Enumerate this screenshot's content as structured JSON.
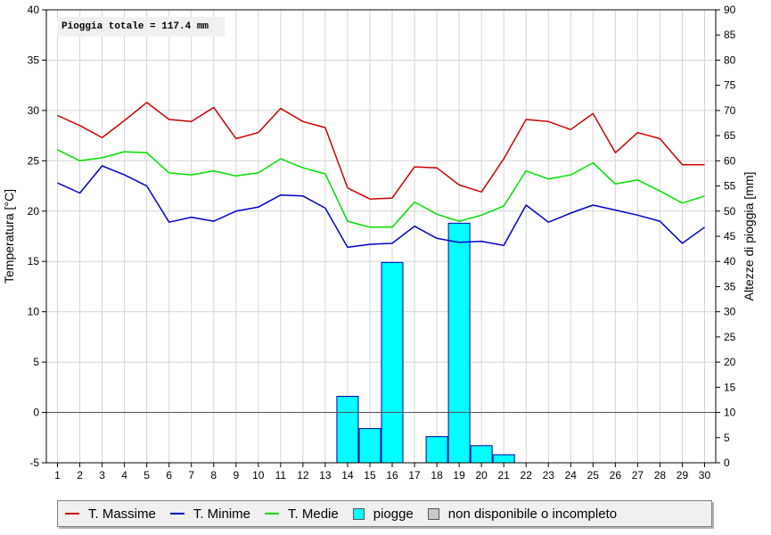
{
  "chart_data": {
    "type": "line",
    "annotation": "Pioggia totale = 117.4 mm",
    "xlabel": "",
    "ylabel_left": "Temperatura [°C]",
    "ylabel_right": "Altezze di pioggia [mm]",
    "x": [
      1,
      2,
      3,
      4,
      5,
      6,
      7,
      8,
      9,
      10,
      11,
      12,
      13,
      14,
      15,
      16,
      17,
      18,
      19,
      20,
      21,
      22,
      23,
      24,
      25,
      26,
      27,
      28,
      29,
      30
    ],
    "ylim_left": [
      -5,
      40
    ],
    "yticks_left": [
      -5,
      0,
      5,
      10,
      15,
      20,
      25,
      30,
      35,
      40
    ],
    "ylim_right": [
      0,
      90
    ],
    "yticks_right": [
      0,
      5,
      10,
      15,
      20,
      25,
      30,
      35,
      40,
      45,
      50,
      55,
      60,
      65,
      70,
      75,
      80,
      85,
      90
    ],
    "grid": true,
    "legend_position": "bottom",
    "series": [
      {
        "name": "T. Massime",
        "color": "#cc0000",
        "axis": "left",
        "values": [
          29.5,
          28.5,
          27.3,
          29.0,
          30.8,
          29.1,
          28.9,
          30.3,
          27.2,
          27.8,
          30.2,
          28.9,
          28.3,
          22.3,
          21.2,
          21.3,
          24.4,
          24.3,
          22.6,
          21.9,
          25.2,
          29.1,
          28.9,
          28.1,
          29.7,
          25.8,
          27.8,
          27.2,
          24.6,
          24.6
        ]
      },
      {
        "name": "T. Minime",
        "color": "#0000cc",
        "axis": "left",
        "values": [
          22.8,
          21.8,
          24.5,
          23.6,
          22.5,
          18.9,
          19.4,
          19.0,
          20.0,
          20.4,
          21.6,
          21.5,
          20.3,
          16.4,
          16.7,
          16.8,
          18.5,
          17.3,
          16.9,
          17.0,
          16.6,
          20.6,
          18.9,
          19.8,
          20.6,
          20.1,
          19.6,
          19.0,
          16.8,
          18.4
        ]
      },
      {
        "name": "T. Medie",
        "color": "#00dd00",
        "axis": "left",
        "values": [
          26.1,
          25.0,
          25.3,
          25.9,
          25.8,
          23.8,
          23.6,
          24.0,
          23.5,
          23.8,
          25.2,
          24.3,
          23.7,
          19.0,
          18.4,
          18.4,
          20.9,
          19.7,
          19.0,
          19.6,
          20.5,
          24.0,
          23.2,
          23.6,
          24.8,
          22.7,
          23.1,
          22.0,
          20.8,
          21.5
        ]
      }
    ],
    "bars": {
      "name": "piogge",
      "color": "#00ffff",
      "axis": "right",
      "x": [
        14,
        15,
        16,
        18,
        19,
        20,
        21
      ],
      "values": [
        13.2,
        6.8,
        39.8,
        5.2,
        47.6,
        3.4,
        1.6
      ]
    },
    "legend_extra": {
      "name": "non disponibile o incompleto",
      "color": "#c8c8c8"
    }
  }
}
